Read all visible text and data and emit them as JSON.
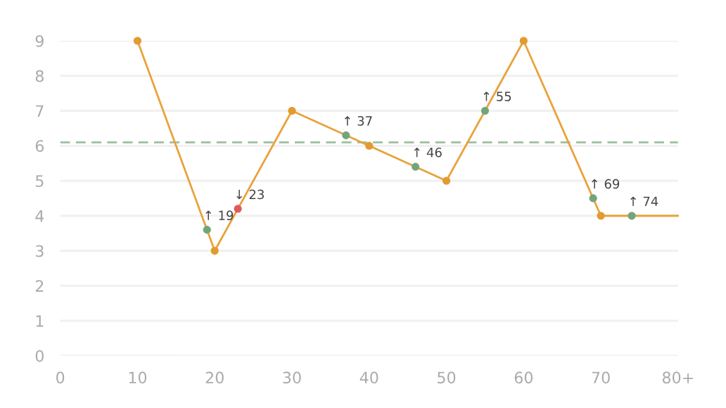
{
  "chart_data": {
    "type": "line",
    "series": [
      {
        "color": "#e9a23b",
        "marker": "none",
        "x": [
          10,
          20,
          30,
          40,
          50,
          60,
          70,
          80
        ],
        "values": [
          9,
          3,
          7,
          6,
          5,
          9,
          4,
          4
        ]
      },
      {
        "type": "scatter",
        "color": "#e39a2f",
        "marker": "circle",
        "x": [
          10,
          20,
          30,
          40,
          50,
          60,
          70
        ],
        "values": [
          9,
          3,
          7,
          6,
          5,
          9,
          4
        ]
      },
      {
        "type": "scatter",
        "color": "#74a57a",
        "marker": "circle",
        "x": [
          19,
          37,
          46,
          55,
          69,
          74
        ],
        "values": [
          3.6,
          6.3,
          5.4,
          7.0,
          4.5,
          4.0
        ]
      },
      {
        "type": "scatter",
        "color": "#e05a5a",
        "marker": "circle",
        "x": [
          23
        ],
        "values": [
          4.2
        ]
      }
    ],
    "annotations": [
      {
        "text": "↑ 19",
        "x": 19,
        "y": 3.6
      },
      {
        "text": "↓ 23",
        "x": 23,
        "y": 4.2
      },
      {
        "text": "↑ 37",
        "x": 37,
        "y": 6.3
      },
      {
        "text": "↑ 46",
        "x": 46,
        "y": 5.4
      },
      {
        "text": "↑ 55",
        "x": 55,
        "y": 7.0
      },
      {
        "text": "↑ 69",
        "x": 69,
        "y": 4.5
      },
      {
        "text": "↑ 74",
        "x": 74,
        "y": 4.0
      }
    ],
    "ref_lines": [
      {
        "axis": "y",
        "value": 6.1,
        "color": "#9dbf9f",
        "line_style": "dashed"
      }
    ],
    "xlim": [
      0,
      80
    ],
    "xticks": [
      0,
      10,
      20,
      30,
      40,
      50,
      60,
      70,
      {
        "value": 80,
        "label": "80+"
      }
    ],
    "ylim": [
      0,
      9
    ],
    "yticks": [
      0,
      1,
      2,
      3,
      4,
      5,
      6,
      7,
      8,
      9
    ],
    "grid": "y",
    "legend": false
  }
}
